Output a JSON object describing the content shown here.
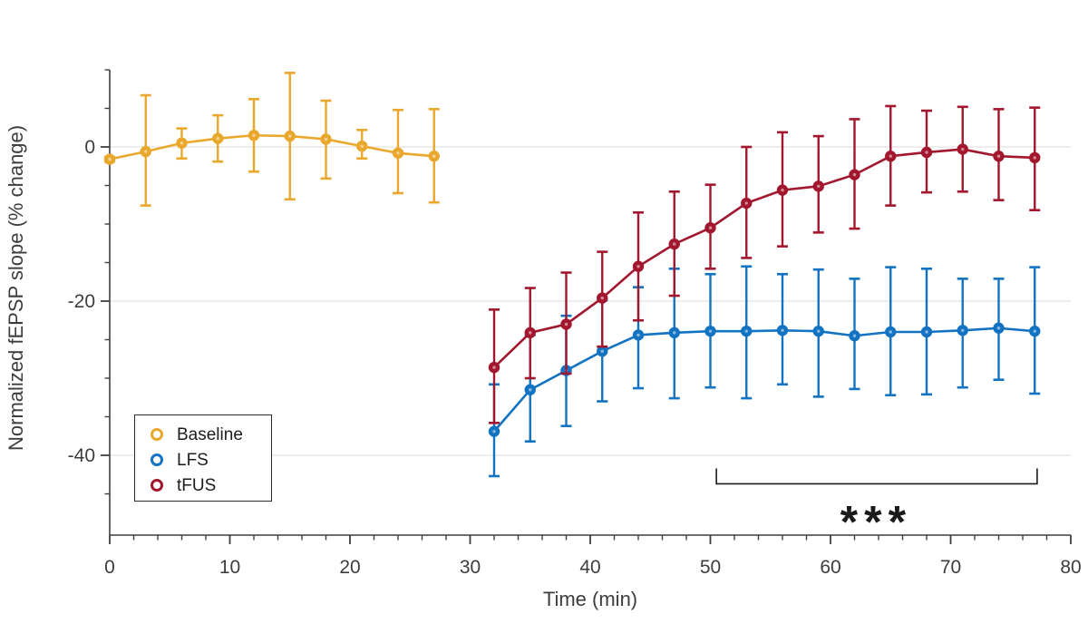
{
  "figure": {
    "background": "#ffffff",
    "axis_color": "#3f3f3f",
    "grid_color": "#e7e7e7",
    "tick_label_color": "#3d3d3d",
    "annotation_color": "#1a1a1a"
  },
  "chart_data": {
    "type": "line",
    "title": "",
    "xlabel": "Time (min)",
    "ylabel": "Normalized fEPSP slope (% change)",
    "xlim": [
      0,
      80
    ],
    "ylim": [
      -50.4,
      10
    ],
    "xticks_major": [
      0,
      10,
      20,
      30,
      40,
      50,
      60,
      70,
      80
    ],
    "xtick_minor_step": 2,
    "yticks_major": [
      0,
      -20,
      -40
    ],
    "ytick_minor_step": 5,
    "ytick_minor_range": [
      -45,
      10
    ],
    "grid": "horizontal-at-major-y",
    "legend_position": "lower-left-inside",
    "error_bars": true,
    "series": [
      {
        "name": "Baseline",
        "color": "#E9A82C",
        "x": [
          0,
          3,
          6,
          9,
          12,
          15,
          18,
          21,
          24,
          27
        ],
        "y": [
          -1.6,
          -0.6,
          0.5,
          1.1,
          1.5,
          1.4,
          1.0,
          0.1,
          -0.8,
          -1.2
        ],
        "err_up": [
          0.3,
          7.3,
          1.9,
          3.0,
          4.7,
          8.2,
          5.0,
          2.1,
          5.6,
          6.1
        ],
        "err_down": [
          0.3,
          7.0,
          2.0,
          3.0,
          4.7,
          8.2,
          5.1,
          1.6,
          5.2,
          6.0
        ]
      },
      {
        "name": "LFS",
        "color": "#1273C2",
        "x": [
          32,
          35,
          38,
          41,
          44,
          47,
          50,
          53,
          56,
          59,
          62,
          65,
          68,
          71,
          74,
          77
        ],
        "y": [
          -36.9,
          -31.5,
          -29.0,
          -26.5,
          -24.4,
          -24.1,
          -23.9,
          -23.9,
          -23.8,
          -23.9,
          -24.5,
          -24.0,
          -24.0,
          -23.8,
          -23.5,
          -23.9
        ],
        "err_up": [
          6.1,
          7.1,
          7.1,
          6.6,
          6.2,
          8.3,
          7.4,
          8.4,
          7.3,
          8.0,
          7.4,
          8.4,
          8.2,
          6.7,
          6.4,
          8.3
        ],
        "err_down": [
          5.8,
          6.7,
          7.2,
          6.5,
          6.9,
          8.5,
          7.3,
          8.7,
          7.0,
          8.5,
          6.9,
          8.2,
          8.1,
          7.4,
          6.7,
          8.1
        ]
      },
      {
        "name": "tFUS",
        "color": "#A3172E",
        "x": [
          32,
          35,
          38,
          41,
          44,
          47,
          50,
          53,
          56,
          59,
          62,
          65,
          68,
          71,
          74,
          77
        ],
        "y": [
          -28.6,
          -24.1,
          -23.0,
          -19.6,
          -15.5,
          -12.6,
          -10.5,
          -7.3,
          -5.6,
          -5.1,
          -3.6,
          -1.2,
          -0.7,
          -0.3,
          -1.2,
          -1.4
        ],
        "err_up": [
          7.5,
          5.8,
          6.7,
          6.0,
          7.0,
          6.8,
          5.6,
          7.3,
          7.5,
          6.5,
          7.2,
          6.5,
          5.4,
          5.5,
          6.1,
          6.5
        ],
        "err_down": [
          7.2,
          5.9,
          6.4,
          6.3,
          7.0,
          6.7,
          5.3,
          7.1,
          7.3,
          6.0,
          7.0,
          6.4,
          5.2,
          5.5,
          5.7,
          6.8
        ]
      }
    ],
    "annotation": {
      "significance_label": "***",
      "bracket_x_start": 50.5,
      "bracket_x_end": 77.2,
      "bracket_y": -43.7,
      "bracket_tick_height": 2.0,
      "label_x": 63.8,
      "label_y": -47.8
    }
  }
}
